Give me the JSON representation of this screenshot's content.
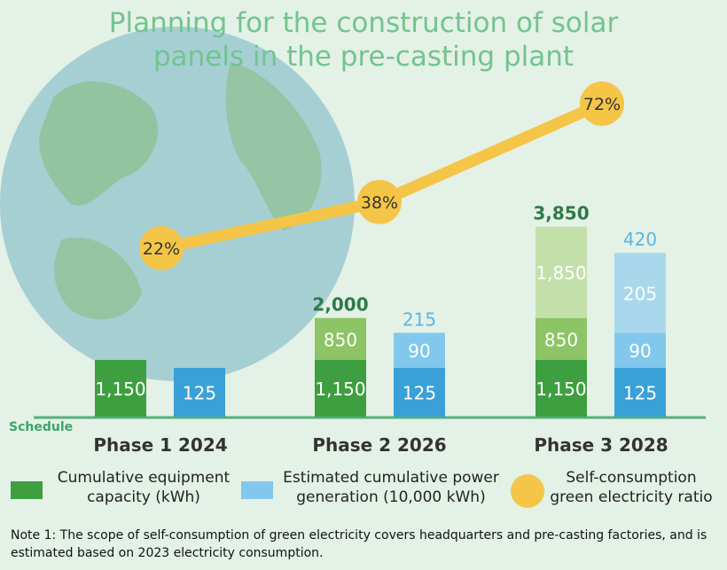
{
  "title_lines": [
    "Planning for the construction of solar",
    "panels in the pre-casting plant"
  ],
  "schedule_label": "Schedule",
  "legend": {
    "capacity": "Cumulative equipment\ncapacity (kWh)",
    "generation": "Estimated cumulative power\ngeneration (10,000 kWh)",
    "ratio": "Self-consumption\ngreen electricity ratio"
  },
  "note": "Note 1: The scope of self-consumption of green electricity covers headquarters and pre-casting factories, and is estimated based on 2023 electricity consumption.",
  "colors": {
    "capacity_base": "#3d9f3f",
    "capacity_mid": "#8cc466",
    "capacity_top": "#c3e0ab",
    "generation_base": "#3aa0d8",
    "generation_mid": "#82c8ec",
    "generation_top": "#a9d8ec",
    "ratio_marker": "#f5c547",
    "ratio_text": "#333333",
    "total_capacity_text": "#2f7a4a",
    "total_generation_text": "#5bb6e6",
    "title": "#72c48f",
    "axis": "#56b07a",
    "globe": "#a6cfd4",
    "land": "#8fc092"
  },
  "chart_data": {
    "type": "bar",
    "stacked": true,
    "categories": [
      "Phase 1 2024",
      "Phase 2 2026",
      "Phase 3 2028"
    ],
    "series": [
      {
        "name": "Cumulative equipment capacity (kWh)",
        "group": "capacity",
        "segments": [
          [
            1150
          ],
          [
            1150,
            850
          ],
          [
            1150,
            850,
            1850
          ]
        ],
        "totals": [
          null,
          "2,000",
          "3,850"
        ],
        "labels": [
          [
            "1,150"
          ],
          [
            "1,150",
            "850"
          ],
          [
            "1,150",
            "850",
            "1,850"
          ]
        ]
      },
      {
        "name": "Estimated cumulative power generation (10,000 kWh)",
        "group": "generation",
        "segments": [
          [
            125
          ],
          [
            125,
            90
          ],
          [
            125,
            90,
            205
          ]
        ],
        "totals": [
          null,
          "215",
          "420"
        ],
        "labels": [
          [
            "125"
          ],
          [
            "125",
            "90"
          ],
          [
            "125",
            "90",
            "205"
          ]
        ]
      }
    ],
    "line": {
      "name": "Self-consumption green electricity ratio",
      "values": [
        22,
        38,
        72
      ],
      "labels": [
        "22%",
        "38%",
        "72%"
      ]
    }
  }
}
